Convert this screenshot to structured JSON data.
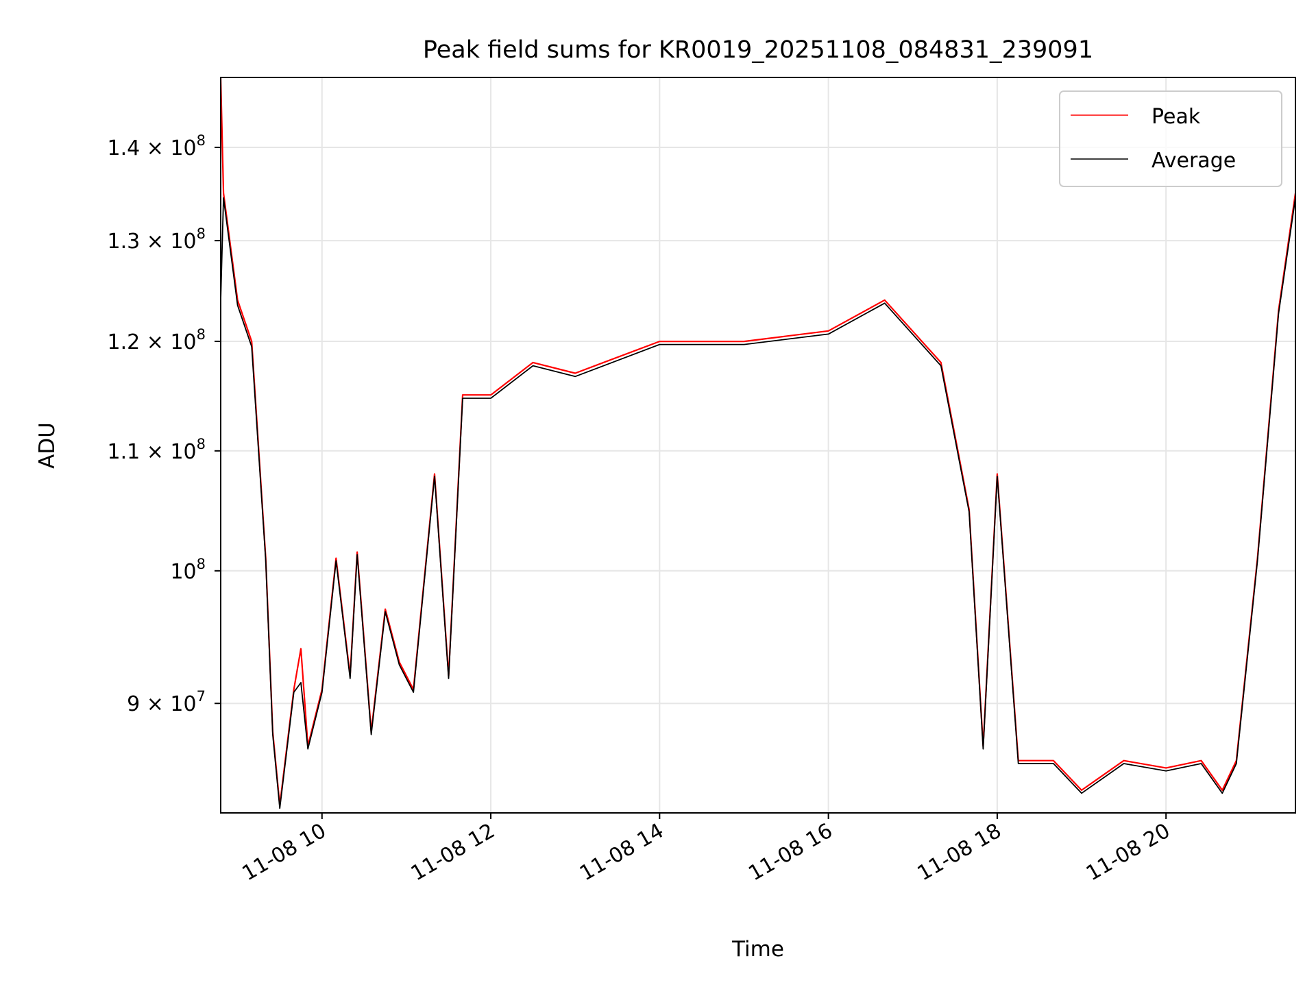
{
  "chart_data": {
    "type": "line",
    "title": "Peak field sums for KR0019_20251108_084831_239091",
    "xlabel": "Time",
    "ylabel": "ADU",
    "yscale": "log",
    "grid": true,
    "legend_placement": "top-right",
    "xlim": [
      "2025-11-08 08:48",
      "2025-11-08 21:32"
    ],
    "ylim": [
      82500000,
      148000000
    ],
    "x_ticks": [
      "11-08 10",
      "11-08 12",
      "11-08 14",
      "11-08 16",
      "11-08 18",
      "11-08 20"
    ],
    "y_ticks": [
      {
        "value": 90000000,
        "mantissa": "9",
        "exponent": "7"
      },
      {
        "value": 100000000,
        "mantissa": "",
        "exponent": "8"
      },
      {
        "value": 110000000,
        "mantissa": "1.1",
        "exponent": "8"
      },
      {
        "value": 120000000,
        "mantissa": "1.2",
        "exponent": "8"
      },
      {
        "value": 130000000,
        "mantissa": "1.3",
        "exponent": "8"
      },
      {
        "value": 140000000,
        "mantissa": "1.4",
        "exponent": "8"
      }
    ],
    "series": [
      {
        "name": "Peak",
        "color": "#ff0000",
        "points": [
          [
            "2025-11-08 08:48",
            148000000
          ],
          [
            "2025-11-08 08:50",
            135000000
          ],
          [
            "2025-11-08 09:00",
            124000000
          ],
          [
            "2025-11-08 09:10",
            120000000
          ],
          [
            "2025-11-08 09:20",
            101000000
          ],
          [
            "2025-11-08 09:25",
            88000000
          ],
          [
            "2025-11-08 09:30",
            83000000
          ],
          [
            "2025-11-08 09:40",
            91000000
          ],
          [
            "2025-11-08 09:45",
            94000000
          ],
          [
            "2025-11-08 09:50",
            87000000
          ],
          [
            "2025-11-08 10:00",
            91000000
          ],
          [
            "2025-11-08 10:10",
            101000000
          ],
          [
            "2025-11-08 10:20",
            92000000
          ],
          [
            "2025-11-08 10:25",
            101500000
          ],
          [
            "2025-11-08 10:35",
            88000000
          ],
          [
            "2025-11-08 10:45",
            97000000
          ],
          [
            "2025-11-08 10:55",
            93000000
          ],
          [
            "2025-11-08 11:05",
            91000000
          ],
          [
            "2025-11-08 11:20",
            108000000
          ],
          [
            "2025-11-08 11:30",
            92000000
          ],
          [
            "2025-11-08 11:40",
            115000000
          ],
          [
            "2025-11-08 12:00",
            115000000
          ],
          [
            "2025-11-08 12:30",
            118000000
          ],
          [
            "2025-11-08 13:00",
            117000000
          ],
          [
            "2025-11-08 14:00",
            120000000
          ],
          [
            "2025-11-08 15:00",
            120000000
          ],
          [
            "2025-11-08 16:00",
            121000000
          ],
          [
            "2025-11-08 16:40",
            124000000
          ],
          [
            "2025-11-08 17:20",
            118000000
          ],
          [
            "2025-11-08 17:40",
            105000000
          ],
          [
            "2025-11-08 17:50",
            87000000
          ],
          [
            "2025-11-08 18:00",
            108000000
          ],
          [
            "2025-11-08 18:15",
            86000000
          ],
          [
            "2025-11-08 18:40",
            86000000
          ],
          [
            "2025-11-08 19:00",
            84000000
          ],
          [
            "2025-11-08 19:30",
            86000000
          ],
          [
            "2025-11-08 20:00",
            85500000
          ],
          [
            "2025-11-08 20:25",
            86000000
          ],
          [
            "2025-11-08 20:40",
            84000000
          ],
          [
            "2025-11-08 20:50",
            86000000
          ],
          [
            "2025-11-08 21:05",
            101000000
          ],
          [
            "2025-11-08 21:20",
            123000000
          ],
          [
            "2025-11-08 21:32",
            135000000
          ]
        ]
      },
      {
        "name": "Average",
        "color": "#000000",
        "points": [
          [
            "2025-11-08 08:48",
            124000000
          ],
          [
            "2025-11-08 08:50",
            134500000
          ],
          [
            "2025-11-08 09:00",
            123500000
          ],
          [
            "2025-11-08 09:10",
            119500000
          ],
          [
            "2025-11-08 09:20",
            100800000
          ],
          [
            "2025-11-08 09:25",
            87800000
          ],
          [
            "2025-11-08 09:30",
            82800000
          ],
          [
            "2025-11-08 09:40",
            90800000
          ],
          [
            "2025-11-08 09:45",
            91500000
          ],
          [
            "2025-11-08 09:50",
            86800000
          ],
          [
            "2025-11-08 10:00",
            90800000
          ],
          [
            "2025-11-08 10:10",
            100800000
          ],
          [
            "2025-11-08 10:20",
            91800000
          ],
          [
            "2025-11-08 10:25",
            101300000
          ],
          [
            "2025-11-08 10:35",
            87800000
          ],
          [
            "2025-11-08 10:45",
            96800000
          ],
          [
            "2025-11-08 10:55",
            92800000
          ],
          [
            "2025-11-08 11:05",
            90800000
          ],
          [
            "2025-11-08 11:20",
            107800000
          ],
          [
            "2025-11-08 11:30",
            91800000
          ],
          [
            "2025-11-08 11:40",
            114700000
          ],
          [
            "2025-11-08 12:00",
            114700000
          ],
          [
            "2025-11-08 12:30",
            117700000
          ],
          [
            "2025-11-08 13:00",
            116700000
          ],
          [
            "2025-11-08 14:00",
            119700000
          ],
          [
            "2025-11-08 15:00",
            119700000
          ],
          [
            "2025-11-08 16:00",
            120700000
          ],
          [
            "2025-11-08 16:40",
            123700000
          ],
          [
            "2025-11-08 17:20",
            117700000
          ],
          [
            "2025-11-08 17:40",
            104800000
          ],
          [
            "2025-11-08 17:50",
            86800000
          ],
          [
            "2025-11-08 18:00",
            107800000
          ],
          [
            "2025-11-08 18:15",
            85800000
          ],
          [
            "2025-11-08 18:40",
            85800000
          ],
          [
            "2025-11-08 19:00",
            83800000
          ],
          [
            "2025-11-08 19:30",
            85800000
          ],
          [
            "2025-11-08 20:00",
            85300000
          ],
          [
            "2025-11-08 20:25",
            85800000
          ],
          [
            "2025-11-08 20:40",
            83800000
          ],
          [
            "2025-11-08 20:50",
            85800000
          ],
          [
            "2025-11-08 21:05",
            100800000
          ],
          [
            "2025-11-08 21:20",
            122700000
          ],
          [
            "2025-11-08 21:32",
            134500000
          ]
        ]
      }
    ]
  }
}
